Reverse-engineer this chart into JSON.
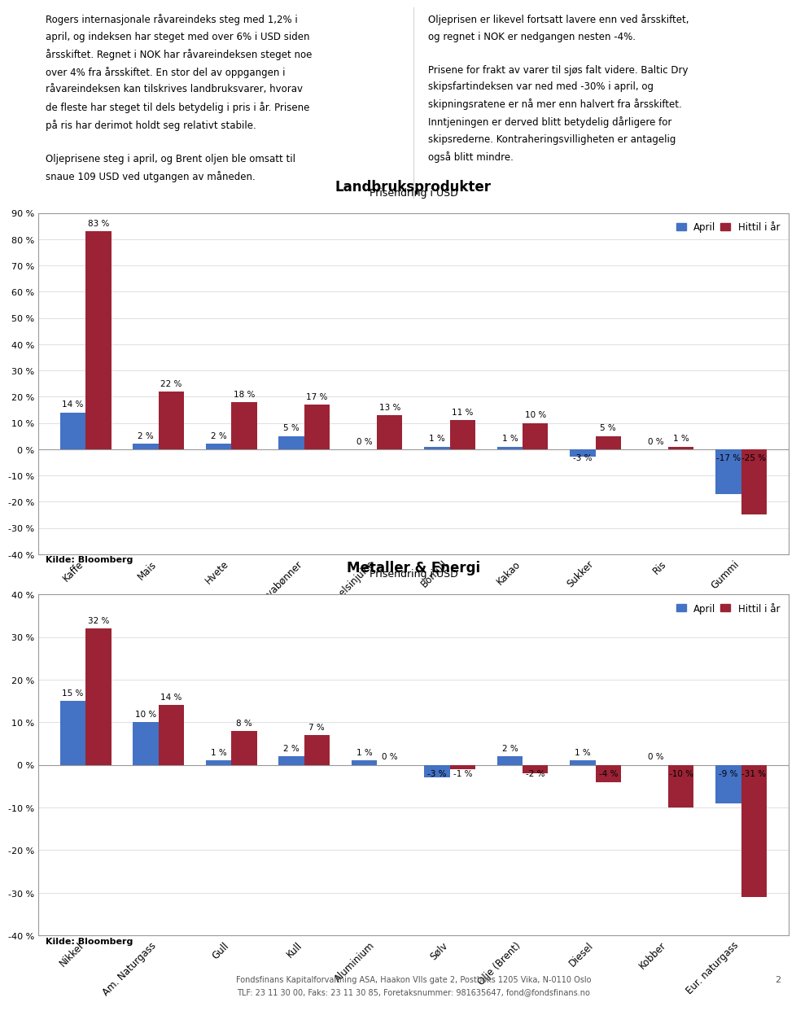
{
  "text_left": "Rogers internasjonale råvareindeks steg med 1,2% i\napril, og indeksen har steget med over 6% i USD siden\nårsskiftet. Regnet i NOK har råvareindeksen steget noe\nover 4% fra årsskiftet. En stor del av oppgangen i\nråvareindeksen kan tilskrives landbruksvarer, hvorav\nde fleste har steget til dels betydelig i pris i år. Prisene\npå ris har derimot holdt seg relativt stabile.\n\nOljeprisene steg i april, og Brent oljen ble omsatt til\nsnaue 109 USD ved utgangen av måneden.",
  "text_right": "Oljeprisen er likevel fortsatt lavere enn ved årsskiftet,\nog regnet i NOK er nedgangen nesten -4%.\n\nPrisene for frakt av varer til sjøs falt videre. Baltic Dry\nskipsfartindeksen var ned med -30% i april, og\nskipningsratene er nå mer enn halvert fra årsskiftet.\nInntjeningen er derved blitt betydelig dårligere for\nskipsrederne. Kontraheringsvilligheten er antagelig\nogså blitt mindre.",
  "chart1": {
    "title": "Landbruksprodukter",
    "subtitle": "Prisendring i USD",
    "categories": [
      "Kaffe",
      "Mais",
      "Hvete",
      "Soyabønner",
      "Appelsinjuice",
      "Bomull",
      "Kakao",
      "Sukker",
      "Ris",
      "Gummi"
    ],
    "april": [
      14,
      2,
      2,
      5,
      0,
      1,
      1,
      -3,
      0,
      -17
    ],
    "hittil": [
      83,
      22,
      18,
      17,
      13,
      11,
      10,
      5,
      1,
      -25
    ],
    "ylim": [
      -40,
      90
    ],
    "yticks": [
      -40,
      -30,
      -20,
      -10,
      0,
      10,
      20,
      30,
      40,
      50,
      60,
      70,
      80,
      90
    ],
    "source": "Kilde: Bloomberg"
  },
  "chart2": {
    "title": "Metaller & Energi",
    "subtitle": "Prisendring i USD",
    "categories": [
      "Nikkel",
      "Am. Naturgass",
      "Gull",
      "Kull",
      "Aluminium",
      "Sølv",
      "Olje (Brent)",
      "Diesel",
      "Kobber",
      "Eur. naturgass"
    ],
    "april": [
      15,
      10,
      1,
      2,
      1,
      -3,
      2,
      1,
      0,
      -9
    ],
    "hittil": [
      32,
      14,
      8,
      7,
      0,
      -1,
      -2,
      -4,
      -10,
      -31
    ],
    "ylim": [
      -40,
      40
    ],
    "yticks": [
      -40,
      -30,
      -20,
      -10,
      0,
      10,
      20,
      30,
      40
    ],
    "source": "Kilde: Bloomberg"
  },
  "legend_april_color": "#4472C4",
  "legend_hittil_color": "#9B2335",
  "footer_line1": "Fondsfinans Kapitalforvaltning ASA, Haakon VIIs gate 2, Postboks 1205 Vika, N-0110 Oslo",
  "footer_line2": "TLF: 23 11 30 00, Faks: 23 11 30 85, Foretaksnummer: 981635647, fond@fondsfinans.no",
  "page_number": "2"
}
